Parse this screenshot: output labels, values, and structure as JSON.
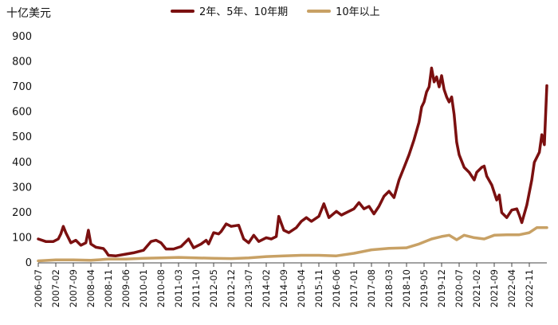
{
  "chart_data": {
    "type": "line",
    "ylabel": "十亿美元",
    "ylim": [
      0,
      900
    ],
    "yticks": [
      0,
      100,
      200,
      300,
      400,
      500,
      600,
      700,
      800,
      900
    ],
    "x_start": "2006-07",
    "x_end": "2023-06",
    "xticks": [
      "2006-07",
      "2007-02",
      "2007-09",
      "2008-04",
      "2008-11",
      "2009-06",
      "2010-01",
      "2010-08",
      "2011-03",
      "2011-10",
      "2012-05",
      "2012-12",
      "2013-07",
      "2014-02",
      "2014-09",
      "2015-04",
      "2015-11",
      "2016-06",
      "2017-01",
      "2017-08",
      "2018-03",
      "2018-10",
      "2019-05",
      "2019-12",
      "2020-07",
      "2021-02",
      "2021-09",
      "2022-04",
      "2022-11"
    ],
    "legend_position": "top",
    "series": [
      {
        "name": "2年、5年、10年期",
        "color": "#7b1010",
        "points": [
          [
            "2006-07",
            95
          ],
          [
            "2006-10",
            85
          ],
          [
            "2007-01",
            85
          ],
          [
            "2007-03",
            95
          ],
          [
            "2007-04",
            115
          ],
          [
            "2007-05",
            145
          ],
          [
            "2007-06",
            120
          ],
          [
            "2007-08",
            80
          ],
          [
            "2007-10",
            90
          ],
          [
            "2007-12",
            70
          ],
          [
            "2008-02",
            80
          ],
          [
            "2008-03",
            130
          ],
          [
            "2008-04",
            75
          ],
          [
            "2008-06",
            62
          ],
          [
            "2008-09",
            57
          ],
          [
            "2008-10",
            45
          ],
          [
            "2008-11",
            30
          ],
          [
            "2009-02",
            28
          ],
          [
            "2009-06",
            35
          ],
          [
            "2009-09",
            40
          ],
          [
            "2010-01",
            50
          ],
          [
            "2010-04",
            85
          ],
          [
            "2010-06",
            90
          ],
          [
            "2010-08",
            80
          ],
          [
            "2010-10",
            55
          ],
          [
            "2011-01",
            55
          ],
          [
            "2011-04",
            65
          ],
          [
            "2011-07",
            95
          ],
          [
            "2011-09",
            60
          ],
          [
            "2011-12",
            75
          ],
          [
            "2012-02",
            90
          ],
          [
            "2012-03",
            75
          ],
          [
            "2012-05",
            120
          ],
          [
            "2012-07",
            115
          ],
          [
            "2012-08",
            125
          ],
          [
            "2012-10",
            155
          ],
          [
            "2012-12",
            145
          ],
          [
            "2013-03",
            150
          ],
          [
            "2013-05",
            95
          ],
          [
            "2013-07",
            80
          ],
          [
            "2013-09",
            110
          ],
          [
            "2013-11",
            85
          ],
          [
            "2014-02",
            100
          ],
          [
            "2014-04",
            95
          ],
          [
            "2014-06",
            105
          ],
          [
            "2014-07",
            185
          ],
          [
            "2014-09",
            130
          ],
          [
            "2014-11",
            120
          ],
          [
            "2015-02",
            140
          ],
          [
            "2015-04",
            165
          ],
          [
            "2015-06",
            180
          ],
          [
            "2015-08",
            165
          ],
          [
            "2015-11",
            185
          ],
          [
            "2016-01",
            235
          ],
          [
            "2016-03",
            180
          ],
          [
            "2016-06",
            205
          ],
          [
            "2016-08",
            190
          ],
          [
            "2016-11",
            205
          ],
          [
            "2017-01",
            215
          ],
          [
            "2017-03",
            240
          ],
          [
            "2017-05",
            215
          ],
          [
            "2017-07",
            225
          ],
          [
            "2017-09",
            195
          ],
          [
            "2017-11",
            225
          ],
          [
            "2018-01",
            265
          ],
          [
            "2018-03",
            285
          ],
          [
            "2018-05",
            260
          ],
          [
            "2018-07",
            330
          ],
          [
            "2018-09",
            380
          ],
          [
            "2018-11",
            430
          ],
          [
            "2019-01",
            490
          ],
          [
            "2019-03",
            560
          ],
          [
            "2019-04",
            620
          ],
          [
            "2019-05",
            640
          ],
          [
            "2019-06",
            680
          ],
          [
            "2019-07",
            700
          ],
          [
            "2019-08",
            775
          ],
          [
            "2019-09",
            720
          ],
          [
            "2019-10",
            740
          ],
          [
            "2019-11",
            700
          ],
          [
            "2019-12",
            745
          ],
          [
            "2020-01",
            690
          ],
          [
            "2020-02",
            660
          ],
          [
            "2020-03",
            640
          ],
          [
            "2020-04",
            660
          ],
          [
            "2020-05",
            590
          ],
          [
            "2020-06",
            480
          ],
          [
            "2020-07",
            430
          ],
          [
            "2020-09",
            380
          ],
          [
            "2020-11",
            360
          ],
          [
            "2021-01",
            330
          ],
          [
            "2021-02",
            360
          ],
          [
            "2021-04",
            380
          ],
          [
            "2021-05",
            385
          ],
          [
            "2021-06",
            345
          ],
          [
            "2021-08",
            310
          ],
          [
            "2021-10",
            250
          ],
          [
            "2021-11",
            270
          ],
          [
            "2021-12",
            200
          ],
          [
            "2022-02",
            180
          ],
          [
            "2022-04",
            210
          ],
          [
            "2022-06",
            215
          ],
          [
            "2022-07",
            190
          ],
          [
            "2022-08",
            160
          ],
          [
            "2022-10",
            230
          ],
          [
            "2022-12",
            330
          ],
          [
            "2023-01",
            400
          ],
          [
            "2023-03",
            440
          ],
          [
            "2023-04",
            510
          ],
          [
            "2023-05",
            470
          ],
          [
            "2023-06",
            705
          ]
        ]
      },
      {
        "name": "10年以上",
        "color": "#c8a165",
        "points": [
          [
            "2006-07",
            8
          ],
          [
            "2007-02",
            12
          ],
          [
            "2007-09",
            12
          ],
          [
            "2008-04",
            10
          ],
          [
            "2008-11",
            15
          ],
          [
            "2009-06",
            15
          ],
          [
            "2010-01",
            18
          ],
          [
            "2010-08",
            20
          ],
          [
            "2011-03",
            22
          ],
          [
            "2011-10",
            20
          ],
          [
            "2012-05",
            18
          ],
          [
            "2012-12",
            17
          ],
          [
            "2013-07",
            20
          ],
          [
            "2014-02",
            25
          ],
          [
            "2014-09",
            28
          ],
          [
            "2015-04",
            30
          ],
          [
            "2015-11",
            30
          ],
          [
            "2016-06",
            28
          ],
          [
            "2017-01",
            38
          ],
          [
            "2017-08",
            52
          ],
          [
            "2018-03",
            58
          ],
          [
            "2018-10",
            60
          ],
          [
            "2019-03",
            75
          ],
          [
            "2019-08",
            95
          ],
          [
            "2019-12",
            105
          ],
          [
            "2020-03",
            110
          ],
          [
            "2020-06",
            92
          ],
          [
            "2020-09",
            110
          ],
          [
            "2021-01",
            100
          ],
          [
            "2021-05",
            95
          ],
          [
            "2021-09",
            110
          ],
          [
            "2022-02",
            112
          ],
          [
            "2022-07",
            112
          ],
          [
            "2022-11",
            120
          ],
          [
            "2023-02",
            140
          ],
          [
            "2023-06",
            140
          ]
        ]
      }
    ]
  }
}
